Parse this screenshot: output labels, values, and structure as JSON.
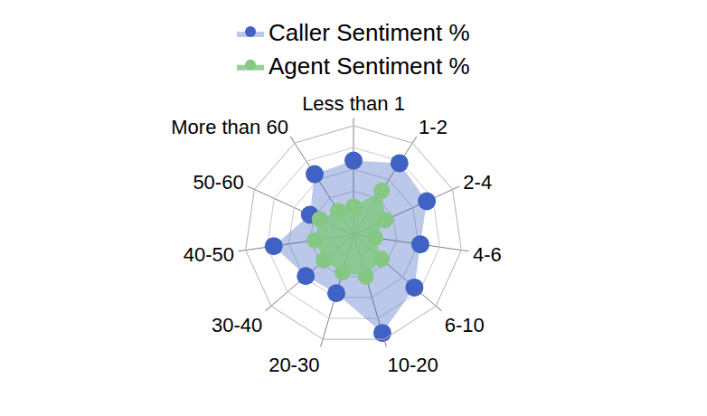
{
  "chart_data": {
    "type": "radar",
    "categories": [
      "Less than 1",
      "1-2",
      "2-4",
      "4-6",
      "6-10",
      "10-20",
      "20-30",
      "30-40",
      "40-50",
      "50-60",
      "More than 60"
    ],
    "series": [
      {
        "name": "Caller Sentiment %",
        "color": "#4062c4",
        "values": [
          34,
          39,
          37,
          31,
          37,
          47,
          28,
          29,
          37,
          22,
          33
        ]
      },
      {
        "name": "Agent Sentiment %",
        "color": "#84c884",
        "values": [
          13,
          24,
          16,
          10,
          17,
          20,
          18,
          18,
          18,
          17,
          13
        ]
      }
    ],
    "ylim": [
      0,
      50
    ],
    "yticks": [
      0,
      10,
      20,
      30,
      40,
      50
    ],
    "grid": true,
    "legend": "top",
    "tick_labels": "x",
    "marker": "circle"
  }
}
